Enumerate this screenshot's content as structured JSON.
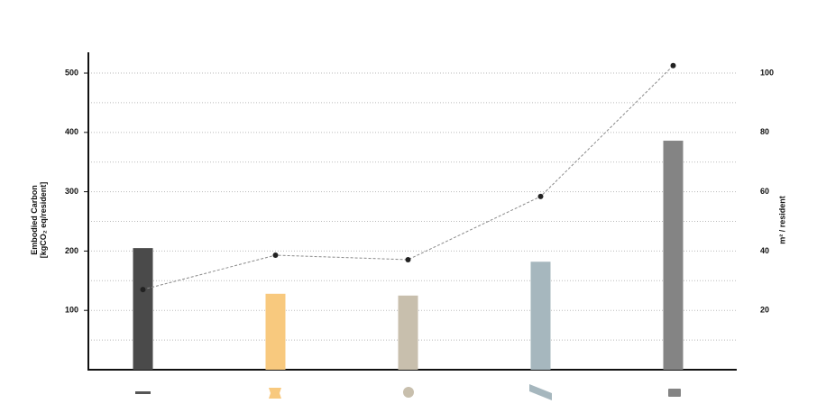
{
  "chart_data": {
    "type": "combo",
    "ylabel": [
      "Embodied Carbon",
      "[kgCO₂ eq/resident]"
    ],
    "y2label": "m² / resident",
    "categories": [
      null,
      null,
      null,
      null,
      null
    ],
    "series": [
      {
        "type": "bar",
        "colors": [
          "#4a4a4a",
          "#f8c97e",
          "#c8bfad",
          "#a6b7be",
          "#848484"
        ],
        "values": [
          205,
          128,
          125,
          182,
          386
        ]
      },
      {
        "type": "line",
        "axis": "y2",
        "color": "#8a8a8a",
        "marker_color": "#222222",
        "values": [
          27,
          38.6,
          37.1,
          58.4,
          102.5
        ]
      }
    ],
    "ylim": [
      0,
      535
    ],
    "yticks": [
      100,
      200,
      300,
      400,
      500
    ],
    "minor_yticks": [
      50,
      150,
      250,
      350,
      450
    ],
    "y2lim": [
      0,
      107
    ],
    "y2ticks": [
      20,
      40,
      60,
      80,
      100
    ],
    "grid": true
  }
}
